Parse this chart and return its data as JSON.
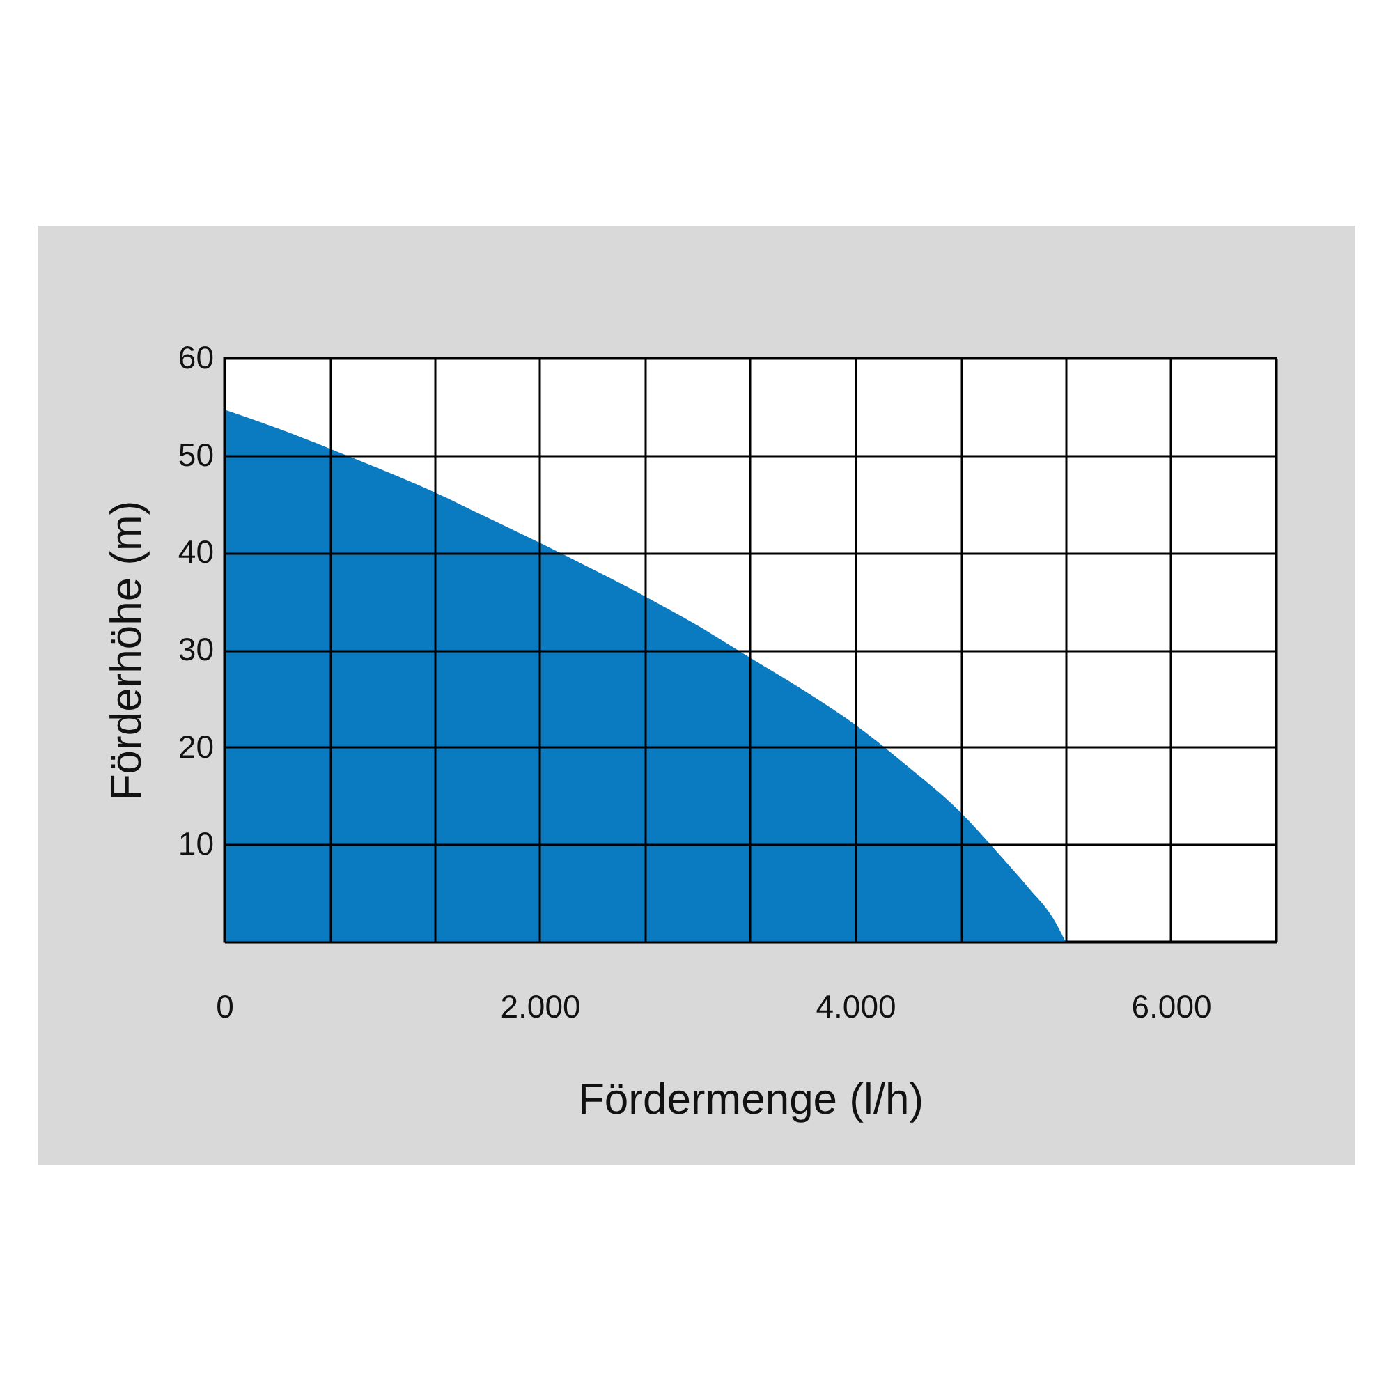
{
  "chart_data": {
    "type": "area",
    "xlabel": "Fördermenge (l/h)",
    "ylabel": "Förderhöhe (m)",
    "x": [
      0,
      333,
      667,
      1000,
      1333,
      1667,
      2000,
      2333,
      2667,
      3000,
      3333,
      3667,
      4000,
      4333,
      4667,
      4900,
      5100,
      5250,
      5333
    ],
    "values": [
      54.7,
      52.8,
      50.7,
      48.5,
      46.2,
      43.6,
      41,
      38.3,
      35.5,
      32.5,
      29.2,
      25.9,
      22.3,
      18,
      13.3,
      9.2,
      5.5,
      2.5,
      0
    ],
    "color": "#0b7bc1",
    "xlim": [
      0,
      6666.67
    ],
    "ylim": [
      0,
      60
    ],
    "xticks": [
      0,
      {
        "value": 666.67,
        "label": null
      },
      {
        "value": 1333.33,
        "label": null
      },
      {
        "value": 2000,
        "label": "2.000"
      },
      {
        "value": 2666.67,
        "label": null
      },
      {
        "value": 3333.33,
        "label": null
      },
      {
        "value": 4000,
        "label": "4.000"
      },
      {
        "value": 4666.67,
        "label": null
      },
      {
        "value": 5333.33,
        "label": null
      },
      {
        "value": 6000,
        "label": "6.000"
      },
      {
        "value": 6666.67,
        "label": null
      }
    ],
    "yticks": [
      {
        "value": 0,
        "label": null
      },
      10,
      20,
      30,
      40,
      50,
      60
    ],
    "grid": true
  }
}
